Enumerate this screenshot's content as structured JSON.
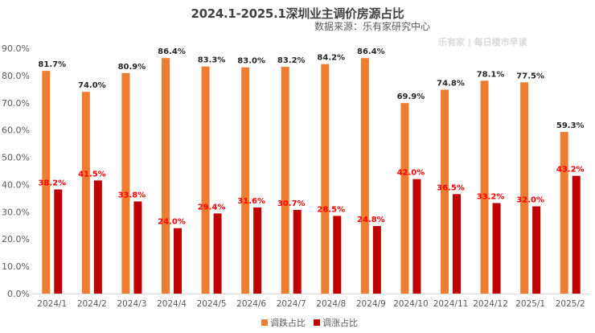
{
  "chart_data": {
    "type": "bar",
    "title": "2024.1-2025.1深圳业主调价房源占比",
    "subtitle": "数据来源：乐有家研究中心",
    "xlabel": "",
    "ylabel": "",
    "ylim": [
      0,
      90
    ],
    "yticks": [
      "0.0%",
      "10.0%",
      "20.0%",
      "30.0%",
      "40.0%",
      "50.0%",
      "60.0%",
      "70.0%",
      "80.0%",
      "90.0%"
    ],
    "grid": false,
    "legend_position": "bottom-center",
    "categories": [
      "2024/1",
      "2024/2",
      "2024/3",
      "2024/4",
      "2024/5",
      "2024/6",
      "2024/7",
      "2024/8",
      "2024/9",
      "2024/10",
      "2024/11",
      "2024/12",
      "2025/1",
      "2025/2"
    ],
    "series": [
      {
        "name": "调跌占比",
        "color": "#ed7d31",
        "values": [
          81.7,
          74.0,
          80.9,
          86.4,
          83.3,
          83.0,
          83.2,
          84.2,
          86.4,
          69.9,
          74.8,
          78.1,
          77.5,
          59.3
        ],
        "labels": [
          "81.7%",
          "74.0%",
          "80.9%",
          "86.4%",
          "83.3%",
          "83.0%",
          "83.2%",
          "84.2%",
          "86.4%",
          "69.9%",
          "74.8%",
          "78.1%",
          "77.5%",
          "59.3%"
        ]
      },
      {
        "name": "调涨占比",
        "color": "#c00000",
        "values": [
          38.2,
          41.5,
          33.8,
          24.0,
          29.4,
          31.6,
          30.7,
          28.5,
          24.8,
          42.0,
          36.5,
          33.2,
          32.0,
          43.2
        ],
        "labels": [
          "38.2%",
          "41.5%",
          "33.8%",
          "24.0%",
          "29.4%",
          "31.6%",
          "30.7%",
          "28.5%",
          "24.8%",
          "42.0%",
          "36.5%",
          "33.2%",
          "32.0%",
          "43.2%"
        ]
      }
    ],
    "watermark": "乐有家 | 每日楼市早读"
  }
}
